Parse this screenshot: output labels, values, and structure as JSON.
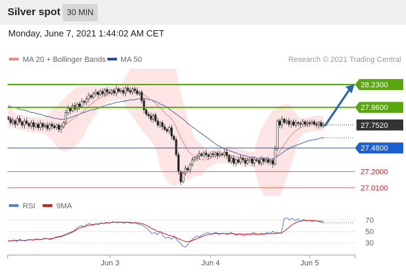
{
  "header": {
    "title": "Silver spot",
    "timeframe": "30 MIN",
    "datetime": "Monday, June 7, 2021 1:44:02 AM CET"
  },
  "colors": {
    "resistance": "#5aa60f",
    "support": "#1b5fd0",
    "weak_support": "#e06060",
    "price_tag": "#333333",
    "bollinger_fill": "#fde0e0",
    "ma20": "#f08a8a",
    "ma50": "#4a6aa8",
    "arrow": "#2a64b5",
    "rsi": "#5a7fd8",
    "rsi_ma": "#d81e1e"
  },
  "legend": {
    "ma20_label": "MA 20 + Bollinger Bands",
    "ma50_label": "MA 50",
    "copyright": "Research © 2021 Trading Central"
  },
  "chart_data": [
    {
      "type": "candlestick",
      "title": "",
      "y_range": [
        26.92,
        28.32
      ],
      "x_ticks": [
        "Jun 3",
        "Jun 4",
        "Jun 5"
      ],
      "levels": [
        {
          "label": "28.2300",
          "value": 28.23,
          "kind": "resistance"
        },
        {
          "label": "27.9600",
          "value": 27.96,
          "kind": "resistance"
        },
        {
          "label": "27.7520",
          "value": 27.752,
          "kind": "price"
        },
        {
          "label": "27.4800",
          "value": 27.48,
          "kind": "support"
        },
        {
          "label": "27.2000",
          "value": 27.2,
          "kind": "weak_support"
        },
        {
          "label": "27.0100",
          "value": 27.01,
          "kind": "weak_support"
        }
      ],
      "close": [
        27.82,
        27.78,
        27.8,
        27.76,
        27.83,
        27.79,
        27.75,
        27.8,
        27.77,
        27.74,
        27.78,
        27.73,
        27.76,
        27.72,
        27.77,
        27.73,
        27.75,
        27.71,
        27.76,
        27.74,
        27.72,
        27.75,
        27.7,
        27.73,
        27.78,
        27.9,
        27.95,
        27.92,
        27.98,
        27.94,
        28.0,
        27.97,
        28.03,
        28.02,
        28.06,
        28.1,
        28.08,
        28.12,
        28.14,
        28.11,
        28.15,
        28.12,
        28.17,
        28.14,
        28.13,
        28.16,
        28.13,
        28.18,
        28.15,
        28.16,
        28.13,
        28.19,
        28.16,
        28.14,
        28.18,
        28.16,
        28.12,
        28.14,
        28.04,
        27.93,
        27.88,
        27.86,
        27.82,
        27.87,
        27.8,
        27.75,
        27.78,
        27.73,
        27.7,
        27.68,
        27.72,
        27.62,
        27.58,
        27.4,
        27.2,
        27.08,
        27.18,
        27.24,
        27.22,
        27.28,
        27.34,
        27.36,
        27.38,
        27.41,
        27.39,
        27.42,
        27.4,
        27.38,
        27.41,
        27.4,
        27.42,
        27.39,
        27.41,
        27.4,
        27.43,
        27.39,
        27.32,
        27.36,
        27.3,
        27.34,
        27.31,
        27.36,
        27.34,
        27.3,
        27.33,
        27.35,
        27.3,
        27.34,
        27.33,
        27.3,
        27.35,
        27.32,
        27.34,
        27.31,
        27.33,
        27.29,
        27.47,
        27.8,
        27.75,
        27.82,
        27.78,
        27.8,
        27.76,
        27.79,
        27.75,
        27.78,
        27.77,
        27.76,
        27.79,
        27.76,
        27.78,
        27.77,
        27.79,
        27.76,
        27.75,
        27.78,
        27.74,
        27.75
      ],
      "ma20": [
        27.86,
        27.84,
        27.82,
        27.8,
        27.79,
        27.79,
        27.78,
        27.78,
        27.77,
        27.76,
        27.76,
        27.75,
        27.76,
        27.75,
        27.75,
        27.74,
        27.74,
        27.74,
        27.75,
        27.75,
        27.74,
        27.74,
        27.74,
        27.74,
        27.75,
        27.76,
        27.78,
        27.8,
        27.82,
        27.84,
        27.86,
        27.88,
        27.9,
        27.92,
        27.95,
        27.98,
        28.0,
        28.02,
        28.04,
        28.06,
        28.07,
        28.09,
        28.1,
        28.11,
        28.12,
        28.13,
        28.13,
        28.14,
        28.14,
        28.15,
        28.15,
        28.15,
        28.15,
        28.15,
        28.15,
        28.15,
        28.14,
        28.14,
        28.13,
        28.11,
        28.09,
        28.07,
        28.05,
        28.03,
        28.01,
        27.98,
        27.96,
        27.93,
        27.9,
        27.87,
        27.85,
        27.82,
        27.78,
        27.73,
        27.66,
        27.6,
        27.55,
        27.5,
        27.45,
        27.42,
        27.4,
        27.38,
        27.36,
        27.35,
        27.34,
        27.34,
        27.35,
        27.35,
        27.36,
        27.37,
        27.38,
        27.39,
        27.39,
        27.4,
        27.4,
        27.4,
        27.4,
        27.39,
        27.38,
        27.38,
        27.37,
        27.37,
        27.36,
        27.36,
        27.35,
        27.35,
        27.35,
        27.34,
        27.34,
        27.34,
        27.34,
        27.34,
        27.34,
        27.33,
        27.33,
        27.33,
        27.36,
        27.4,
        27.44,
        27.48,
        27.52,
        27.56,
        27.6,
        27.63,
        27.66,
        27.68,
        27.7,
        27.72,
        27.73,
        27.74,
        27.75,
        27.76,
        27.77,
        27.77,
        27.77,
        27.77,
        27.77,
        27.77
      ],
      "ma50": [
        27.98,
        27.97,
        27.96,
        27.96,
        27.95,
        27.94,
        27.93,
        27.93,
        27.92,
        27.91,
        27.9,
        27.9,
        27.89,
        27.88,
        27.88,
        27.87,
        27.86,
        27.85,
        27.85,
        27.84,
        27.83,
        27.83,
        27.82,
        27.82,
        27.82,
        27.82,
        27.83,
        27.84,
        27.85,
        27.86,
        27.87,
        27.88,
        27.89,
        27.9,
        27.91,
        27.92,
        27.93,
        27.93,
        27.94,
        27.95,
        27.96,
        27.97,
        27.98,
        27.99,
        28.0,
        28.0,
        28.01,
        28.02,
        28.02,
        28.03,
        28.03,
        28.04,
        28.04,
        28.05,
        28.05,
        28.05,
        28.06,
        28.06,
        28.06,
        28.06,
        28.06,
        28.05,
        28.05,
        28.04,
        28.03,
        28.02,
        28.0,
        27.99,
        27.98,
        27.96,
        27.94,
        27.92,
        27.9,
        27.88,
        27.86,
        27.84,
        27.82,
        27.8,
        27.77,
        27.75,
        27.73,
        27.71,
        27.69,
        27.67,
        27.65,
        27.63,
        27.61,
        27.59,
        27.57,
        27.55,
        27.53,
        27.51,
        27.5,
        27.48,
        27.47,
        27.46,
        27.45,
        27.44,
        27.43,
        27.42,
        27.41,
        27.4,
        27.39,
        27.39,
        27.38,
        27.37,
        27.37,
        27.37,
        27.36,
        27.36,
        27.36,
        27.36,
        27.36,
        27.35,
        27.35,
        27.35,
        27.36,
        27.38,
        27.4,
        27.42,
        27.44,
        27.46,
        27.47,
        27.49,
        27.5,
        27.51,
        27.52,
        27.53,
        27.54,
        27.55,
        27.56,
        27.57,
        27.57,
        27.58,
        27.58,
        27.59,
        27.6,
        27.6
      ],
      "forecast_arrow": {
        "from": 27.74,
        "to": 28.23
      }
    },
    {
      "type": "line",
      "title": "",
      "legend": [
        "RSI",
        "9MA"
      ],
      "y_ticks": [
        "70",
        "50",
        "30"
      ],
      "y_range": [
        15,
        85
      ],
      "rsi": [
        34,
        33,
        35,
        32,
        36,
        34,
        33,
        35,
        36,
        34,
        37,
        35,
        36,
        38,
        37,
        35,
        38,
        40,
        41,
        42,
        44,
        46,
        48,
        50,
        54,
        58,
        60,
        58,
        62,
        64,
        60,
        63,
        62,
        65,
        64,
        66,
        64,
        67,
        66,
        65,
        67,
        64,
        66,
        65,
        64,
        66,
        63,
        62,
        60,
        56,
        52,
        46,
        48,
        44,
        50,
        42,
        38,
        40,
        36,
        42,
        34,
        30,
        24,
        22,
        28,
        34,
        38,
        42,
        40,
        44,
        46,
        48,
        45,
        47,
        48,
        44,
        47,
        46,
        44,
        48,
        46,
        43,
        46,
        44,
        42,
        46,
        44,
        48,
        46,
        44,
        47,
        45,
        48,
        46,
        50,
        47,
        48,
        46,
        72,
        74,
        70,
        73,
        69,
        72,
        68,
        71,
        68,
        70,
        67,
        69,
        68,
        66,
        65
      ],
      "ma9": [
        33,
        33,
        34,
        34,
        34,
        34,
        34,
        35,
        35,
        35,
        36,
        36,
        36,
        37,
        37,
        37,
        38,
        39,
        40,
        41,
        43,
        45,
        47,
        49,
        52,
        55,
        57,
        58,
        60,
        61,
        62,
        63,
        63,
        64,
        64,
        65,
        65,
        66,
        66,
        66,
        66,
        66,
        66,
        66,
        65,
        65,
        65,
        64,
        63,
        61,
        58,
        55,
        53,
        50,
        49,
        47,
        45,
        43,
        42,
        40,
        38,
        36,
        34,
        32,
        32,
        33,
        35,
        37,
        39,
        41,
        43,
        44,
        45,
        46,
        46,
        46,
        46,
        46,
        46,
        46,
        46,
        45,
        45,
        45,
        45,
        45,
        45,
        45,
        45,
        45,
        45,
        45,
        46,
        46,
        46,
        46,
        47,
        47,
        50,
        54,
        58,
        62,
        65,
        67,
        68,
        69,
        69,
        69,
        69,
        69,
        68,
        68,
        67
      ]
    }
  ]
}
